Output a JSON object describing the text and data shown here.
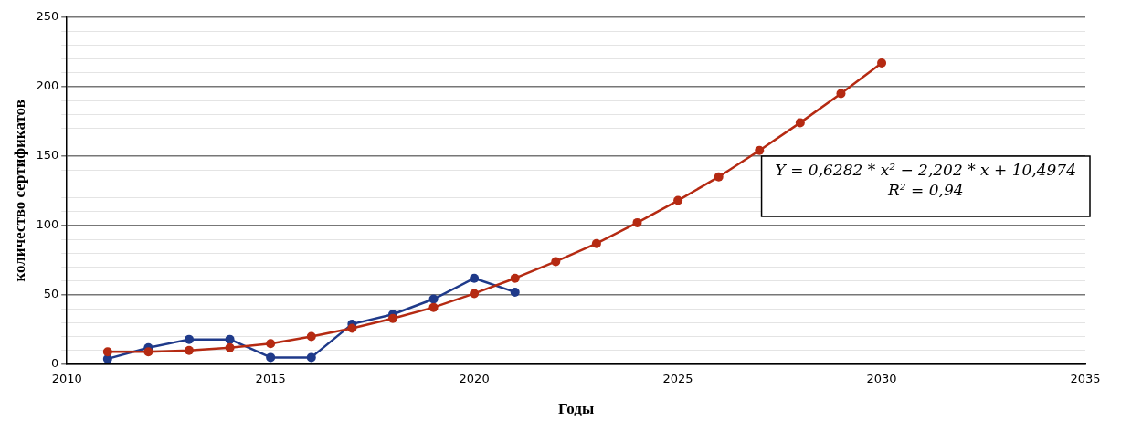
{
  "chart_data": {
    "type": "line",
    "xlabel": "Годы",
    "ylabel": "количество сертификатов",
    "xlim": [
      2010,
      2035
    ],
    "xticks": [
      2010,
      2015,
      2020,
      2025,
      2030,
      2035
    ],
    "ylim": [
      0,
      250
    ],
    "yticks": [
      0,
      {
        "value": 10,
        "label": null
      },
      {
        "value": 20,
        "label": null
      },
      {
        "value": 30,
        "label": null
      },
      {
        "value": 40,
        "label": null
      },
      50,
      {
        "value": 60,
        "label": null
      },
      {
        "value": 70,
        "label": null
      },
      {
        "value": 80,
        "label": null
      },
      {
        "value": 90,
        "label": null
      },
      100,
      {
        "value": 110,
        "label": null
      },
      {
        "value": 120,
        "label": null
      },
      {
        "value": 130,
        "label": null
      },
      {
        "value": 140,
        "label": null
      },
      150,
      {
        "value": 160,
        "label": null
      },
      {
        "value": 170,
        "label": null
      },
      {
        "value": 180,
        "label": null
      },
      {
        "value": 190,
        "label": null
      },
      200,
      {
        "value": 210,
        "label": null
      },
      {
        "value": 220,
        "label": null
      },
      {
        "value": 230,
        "label": null
      },
      {
        "value": 240,
        "label": null
      },
      250
    ],
    "grid": "y",
    "legend": false,
    "marker": "circle",
    "line_style": "solid",
    "series": [
      {
        "color": "#1f3a8a",
        "x": [
          2011,
          2012,
          2013,
          2014,
          2015,
          2016,
          2017,
          2018,
          2019,
          2020,
          2021
        ],
        "values": [
          4,
          12,
          18,
          18,
          5,
          5,
          29,
          36,
          47,
          62,
          52
        ]
      },
      {
        "color": "#b52a12",
        "x": [
          2011,
          2012,
          2013,
          2014,
          2015,
          2016,
          2017,
          2018,
          2019,
          2020,
          2021,
          2022,
          2023,
          2024,
          2025,
          2026,
          2027,
          2028,
          2029,
          2030
        ],
        "values": [
          9,
          9,
          10,
          12,
          15,
          20,
          26,
          33,
          41,
          51,
          62,
          74,
          87,
          102,
          118,
          135,
          154,
          174,
          195,
          217
        ]
      }
    ],
    "annotations": [
      "Y = 0,6282 * x² − 2,202 * x + 10,4974",
      "R² = 0,94"
    ]
  }
}
